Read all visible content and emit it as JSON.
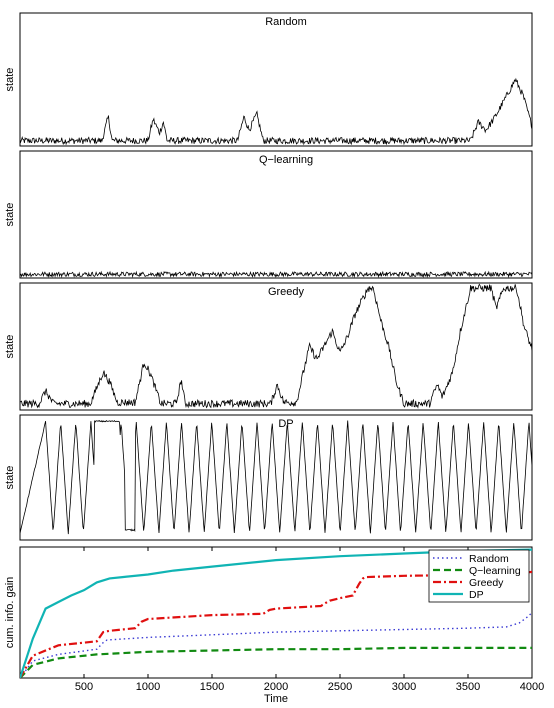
{
  "chart_data": [
    {
      "type": "line",
      "title": "Random",
      "ylabel": "state",
      "xlim": [
        0,
        4000
      ],
      "ylim": [
        0,
        1
      ],
      "profile": [
        [
          0,
          0.04
        ],
        [
          640,
          0.04
        ],
        [
          690,
          0.22
        ],
        [
          720,
          0.04
        ],
        [
          1000,
          0.04
        ],
        [
          1040,
          0.2
        ],
        [
          1090,
          0.1
        ],
        [
          1120,
          0.18
        ],
        [
          1150,
          0.04
        ],
        [
          1700,
          0.04
        ],
        [
          1750,
          0.22
        ],
        [
          1790,
          0.12
        ],
        [
          1850,
          0.24
        ],
        [
          1900,
          0.04
        ],
        [
          3520,
          0.04
        ],
        [
          3580,
          0.18
        ],
        [
          3640,
          0.12
        ],
        [
          3700,
          0.2
        ],
        [
          3770,
          0.32
        ],
        [
          3870,
          0.5
        ],
        [
          3930,
          0.38
        ],
        [
          4000,
          0.15
        ]
      ],
      "noise": 0.025
    },
    {
      "type": "line",
      "title": "Q−learning",
      "ylabel": "state",
      "xlim": [
        0,
        4000
      ],
      "ylim": [
        0,
        1
      ],
      "profile": [
        [
          0,
          0.03
        ],
        [
          4000,
          0.03
        ]
      ],
      "noise": 0.018
    },
    {
      "type": "line",
      "title": "Greedy",
      "ylabel": "state",
      "xlim": [
        0,
        4000
      ],
      "ylim": [
        0,
        1
      ],
      "profile": [
        [
          0,
          0.05
        ],
        [
          150,
          0.05
        ],
        [
          200,
          0.15
        ],
        [
          260,
          0.05
        ],
        [
          550,
          0.05
        ],
        [
          650,
          0.3
        ],
        [
          700,
          0.22
        ],
        [
          760,
          0.06
        ],
        [
          900,
          0.06
        ],
        [
          970,
          0.38
        ],
        [
          1020,
          0.28
        ],
        [
          1100,
          0.05
        ],
        [
          1220,
          0.05
        ],
        [
          1260,
          0.24
        ],
        [
          1290,
          0.05
        ],
        [
          1960,
          0.05
        ],
        [
          2010,
          0.2
        ],
        [
          2060,
          0.06
        ],
        [
          2160,
          0.06
        ],
        [
          2260,
          0.5
        ],
        [
          2320,
          0.4
        ],
        [
          2440,
          0.62
        ],
        [
          2500,
          0.45
        ],
        [
          2560,
          0.58
        ],
        [
          2620,
          0.76
        ],
        [
          2720,
          0.96
        ],
        [
          2760,
          0.96
        ],
        [
          2820,
          0.7
        ],
        [
          2880,
          0.5
        ],
        [
          2940,
          0.22
        ],
        [
          3000,
          0.05
        ],
        [
          3200,
          0.05
        ],
        [
          3260,
          0.2
        ],
        [
          3300,
          0.1
        ],
        [
          3380,
          0.3
        ],
        [
          3440,
          0.62
        ],
        [
          3520,
          0.96
        ],
        [
          3680,
          0.96
        ],
        [
          3720,
          0.8
        ],
        [
          3780,
          0.96
        ],
        [
          3880,
          0.96
        ],
        [
          3940,
          0.65
        ],
        [
          4000,
          0.48
        ]
      ],
      "noise": 0.03
    },
    {
      "type": "line",
      "title": "DP",
      "ylabel": "state",
      "xlim": [
        0,
        4000
      ],
      "ylim": [
        0,
        1
      ],
      "zigzag": true,
      "noise": 0.012
    },
    {
      "type": "line",
      "ylabel": "cum. info. gain",
      "xlabel": "Time",
      "xlim": [
        0,
        4000
      ],
      "ylim": [
        0,
        1
      ],
      "xticks": [
        500,
        1000,
        1500,
        2000,
        2500,
        3000,
        3500,
        4000
      ],
      "legend_position": "top-right",
      "series": [
        {
          "name": "Random",
          "color": "#3b3bd4",
          "dash": "1.5,3",
          "width": 1.4,
          "x": [
            0,
            100,
            300,
            600,
            650,
            680,
            1000,
            1500,
            2000,
            2500,
            3000,
            3500,
            3800,
            3900,
            3970,
            4000
          ],
          "y": [
            0,
            0.13,
            0.18,
            0.22,
            0.27,
            0.29,
            0.31,
            0.33,
            0.35,
            0.36,
            0.37,
            0.38,
            0.39,
            0.42,
            0.47,
            0.5
          ]
        },
        {
          "name": "Q−learning",
          "color": "#118a11",
          "dash": "7,4",
          "width": 2.2,
          "x": [
            0,
            100,
            300,
            600,
            1000,
            1500,
            2000,
            2500,
            3000,
            3500,
            4000
          ],
          "y": [
            0,
            0.1,
            0.15,
            0.18,
            0.2,
            0.21,
            0.22,
            0.22,
            0.23,
            0.23,
            0.23
          ]
        },
        {
          "name": "Greedy",
          "color": "#e01010",
          "dash": "8,3,2,3",
          "width": 2.2,
          "x": [
            0,
            100,
            300,
            600,
            650,
            700,
            900,
            950,
            1000,
            1500,
            1900,
            1950,
            2000,
            2350,
            2400,
            2420,
            2500,
            2600,
            2650,
            2680,
            2700,
            3000,
            3800,
            3900,
            4000
          ],
          "y": [
            0,
            0.17,
            0.25,
            0.28,
            0.35,
            0.36,
            0.38,
            0.43,
            0.45,
            0.48,
            0.49,
            0.52,
            0.53,
            0.55,
            0.58,
            0.59,
            0.61,
            0.63,
            0.72,
            0.76,
            0.77,
            0.78,
            0.79,
            0.8,
            0.81
          ]
        },
        {
          "name": "DP",
          "color": "#10b4b4",
          "dash": "",
          "width": 2.2,
          "x": [
            0,
            100,
            200,
            300,
            400,
            500,
            600,
            700,
            800,
            1000,
            1200,
            1500,
            2000,
            2500,
            3000,
            3500,
            4000
          ],
          "y": [
            0,
            0.3,
            0.53,
            0.58,
            0.63,
            0.67,
            0.73,
            0.76,
            0.77,
            0.79,
            0.82,
            0.85,
            0.9,
            0.93,
            0.95,
            0.97,
            0.98
          ]
        }
      ]
    }
  ]
}
